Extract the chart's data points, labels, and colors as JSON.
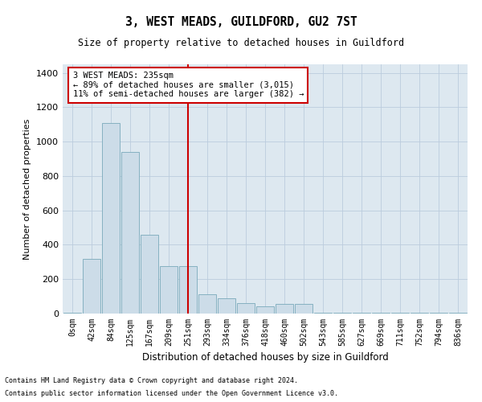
{
  "title": "3, WEST MEADS, GUILDFORD, GU2 7ST",
  "subtitle": "Size of property relative to detached houses in Guildford",
  "xlabel": "Distribution of detached houses by size in Guildford",
  "ylabel": "Number of detached properties",
  "footnote1": "Contains HM Land Registry data © Crown copyright and database right 2024.",
  "footnote2": "Contains public sector information licensed under the Open Government Licence v3.0.",
  "bar_color": "#ccdce8",
  "bar_edge_color": "#7aaabb",
  "grid_color": "#bbccdd",
  "background_color": "#dde8f0",
  "vline_color": "#cc0000",
  "annotation_text": "3 WEST MEADS: 235sqm\n← 89% of detached houses are smaller (3,015)\n11% of semi-detached houses are larger (382) →",
  "annotation_box_color": "#cc0000",
  "categories": [
    "0sqm",
    "42sqm",
    "84sqm",
    "125sqm",
    "167sqm",
    "209sqm",
    "251sqm",
    "293sqm",
    "334sqm",
    "376sqm",
    "418sqm",
    "460sqm",
    "502sqm",
    "543sqm",
    "585sqm",
    "627sqm",
    "669sqm",
    "711sqm",
    "752sqm",
    "794sqm",
    "836sqm"
  ],
  "values": [
    5,
    320,
    1110,
    940,
    460,
    275,
    275,
    110,
    90,
    60,
    40,
    55,
    55,
    5,
    5,
    5,
    5,
    5,
    5,
    5,
    5
  ],
  "ylim": [
    0,
    1450
  ],
  "yticks": [
    0,
    200,
    400,
    600,
    800,
    1000,
    1200,
    1400
  ],
  "vline_idx": 6
}
